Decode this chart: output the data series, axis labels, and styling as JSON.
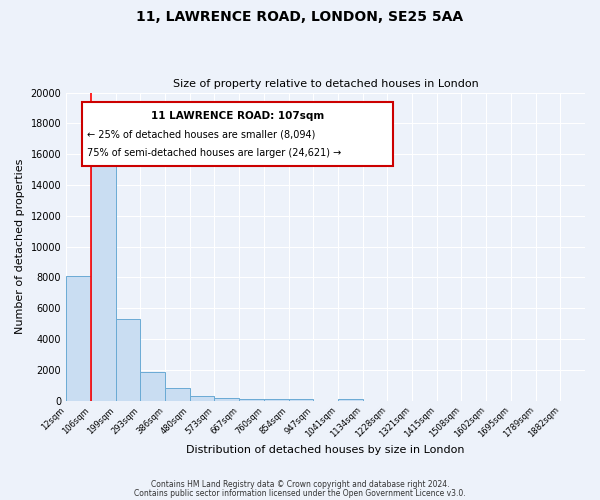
{
  "title": "11, LAWRENCE ROAD, LONDON, SE25 5AA",
  "subtitle": "Size of property relative to detached houses in London",
  "xlabel": "Distribution of detached houses by size in London",
  "ylabel": "Number of detached properties",
  "bar_labels": [
    "12sqm",
    "106sqm",
    "199sqm",
    "293sqm",
    "386sqm",
    "480sqm",
    "573sqm",
    "667sqm",
    "760sqm",
    "854sqm",
    "947sqm",
    "1041sqm",
    "1134sqm",
    "1228sqm",
    "1321sqm",
    "1415sqm",
    "1508sqm",
    "1602sqm",
    "1695sqm",
    "1789sqm",
    "1882sqm"
  ],
  "bar_values": [
    8094,
    16600,
    5300,
    1850,
    800,
    300,
    175,
    100,
    100,
    100,
    0,
    125,
    0,
    0,
    0,
    0,
    0,
    0,
    0,
    0,
    0
  ],
  "bar_color": "#c9ddf2",
  "bar_edge_color": "#6aaad4",
  "background_color": "#edf2fa",
  "grid_color": "#ffffff",
  "red_line_x": 1,
  "annotation_box_text1": "11 LAWRENCE ROAD: 107sqm",
  "annotation_box_text2": "← 25% of detached houses are smaller (8,094)",
  "annotation_box_text3": "75% of semi-detached houses are larger (24,621) →",
  "annotation_box_edge_color": "#cc0000",
  "ylim": [
    0,
    20000
  ],
  "yticks": [
    0,
    2000,
    4000,
    6000,
    8000,
    10000,
    12000,
    14000,
    16000,
    18000,
    20000
  ],
  "footer1": "Contains HM Land Registry data © Crown copyright and database right 2024.",
  "footer2": "Contains public sector information licensed under the Open Government Licence v3.0."
}
